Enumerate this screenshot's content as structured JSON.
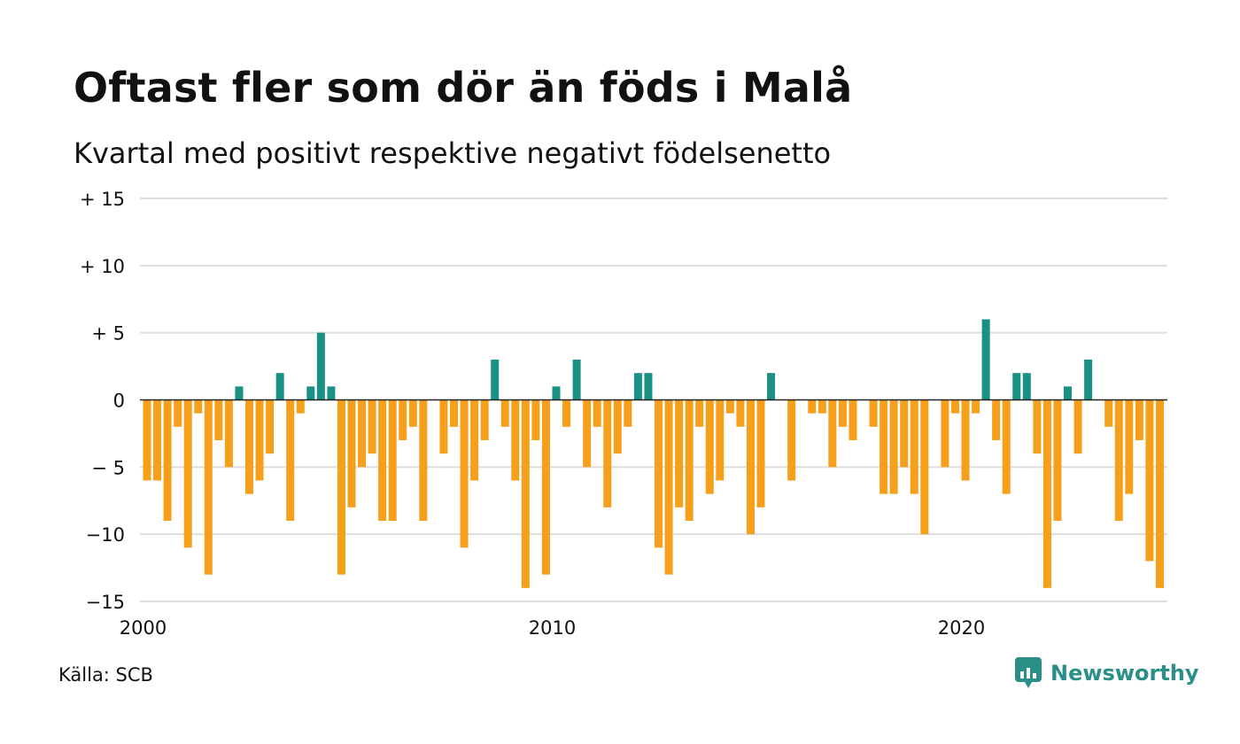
{
  "title": "Oftast fler som dör än föds i Malå",
  "subtitle": "Kvartal med positivt respektive negativt födelsenetto",
  "source": "Källa: SCB",
  "brand": {
    "name": "Newsworthy",
    "icon": "newsworthy-logo-icon"
  },
  "colors": {
    "positive": "#1a9185",
    "negative": "#f59f1a",
    "grid": "#dddddd",
    "zero": "#222222"
  },
  "chart_data": {
    "type": "bar",
    "title": "Oftast fler som dör än föds i Malå",
    "subtitle": "Kvartal med positivt respektive negativt födelsenetto",
    "x_start": 2000,
    "periods_per_year": 4,
    "x_ticks": [
      "2000",
      "2010",
      "2020"
    ],
    "y_ticks": [
      {
        "value": 15,
        "label": "+ 15"
      },
      {
        "value": 10,
        "label": "+ 10"
      },
      {
        "value": 5,
        "label": "+  5"
      },
      {
        "value": 0,
        "label": "0"
      },
      {
        "value": -5,
        "label": "− 5"
      },
      {
        "value": -10,
        "label": "−10"
      },
      {
        "value": -15,
        "label": "−15"
      }
    ],
    "ylim": [
      -15,
      15
    ],
    "grid": true,
    "values": [
      -6,
      -6,
      -9,
      -2,
      -11,
      -1,
      -13,
      -3,
      -5,
      1,
      -7,
      -6,
      -4,
      2,
      -9,
      -1,
      1,
      5,
      1,
      -13,
      -8,
      -5,
      -4,
      -9,
      -9,
      -3,
      -2,
      -9,
      0,
      -4,
      -2,
      -11,
      -6,
      -3,
      3,
      -2,
      -6,
      -14,
      -3,
      -13,
      1,
      -2,
      3,
      -5,
      -2,
      -8,
      -4,
      -2,
      2,
      2,
      -11,
      -13,
      -8,
      -9,
      -2,
      -7,
      -6,
      -1,
      -2,
      -10,
      -8,
      2,
      0,
      -6,
      0,
      -1,
      -1,
      -5,
      -2,
      -3,
      0,
      -2,
      -7,
      -7,
      -5,
      -7,
      -10,
      0,
      -5,
      -1,
      -6,
      -1,
      6,
      -3,
      -7,
      2,
      2,
      -4,
      -14,
      -9,
      1,
      -4,
      3,
      0,
      -2,
      -9,
      -7,
      -3,
      -12,
      -14
    ]
  }
}
